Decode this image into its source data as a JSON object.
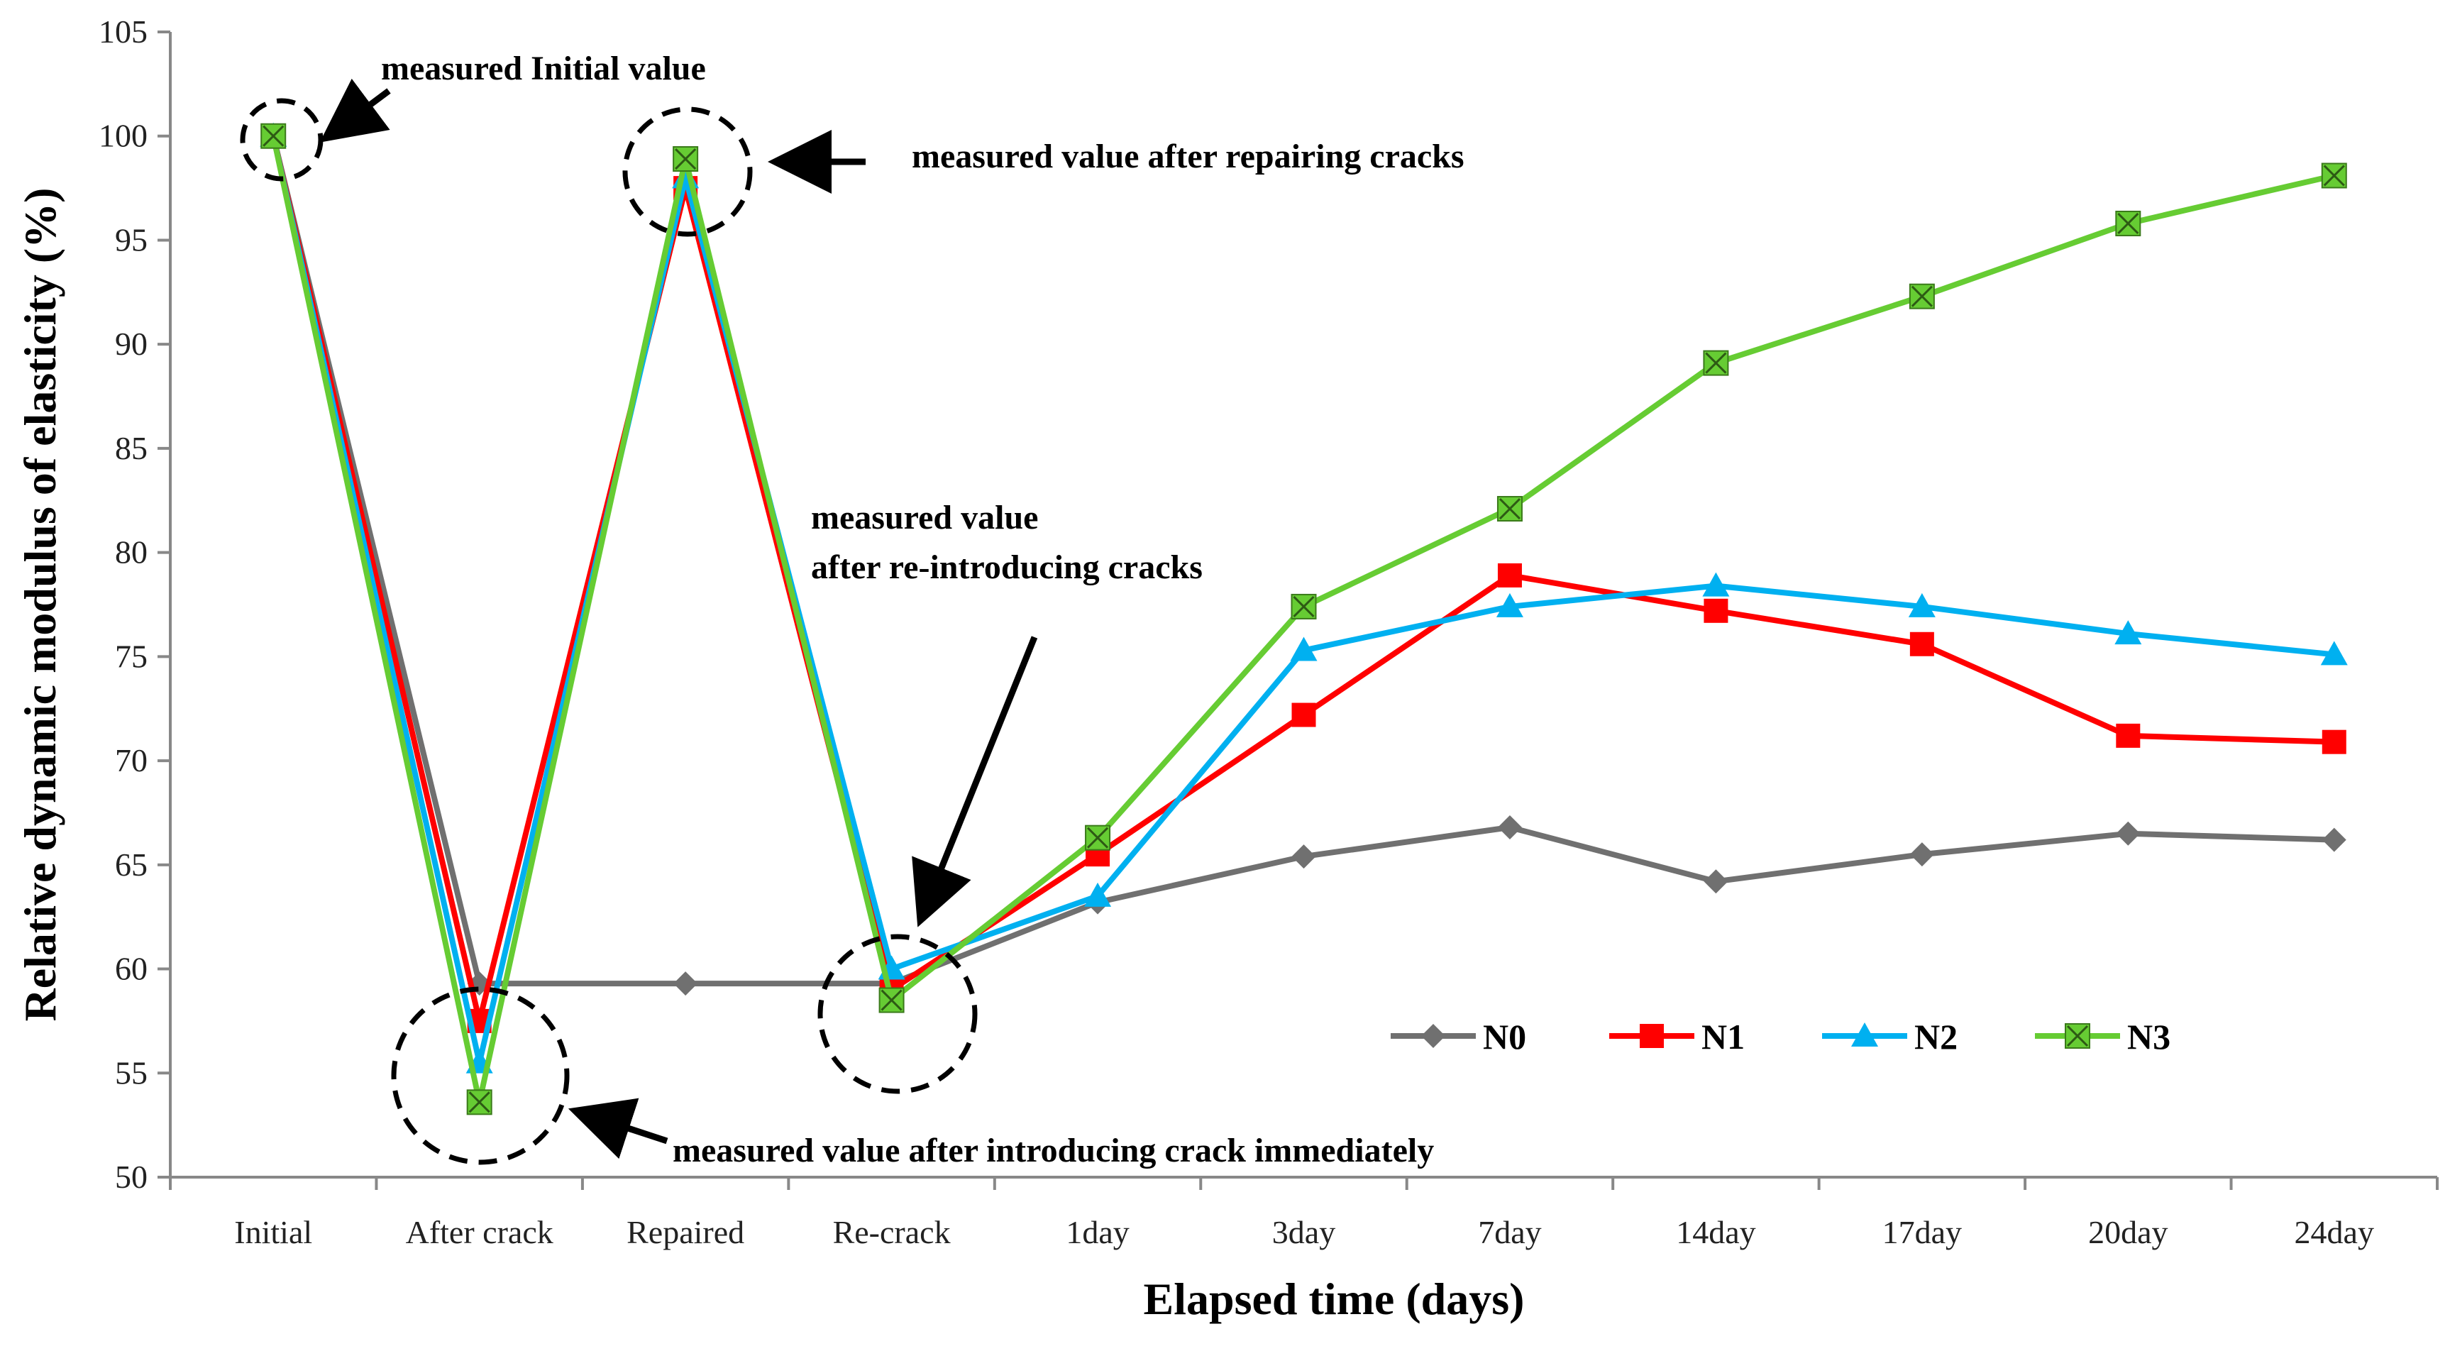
{
  "chart_data": {
    "type": "line",
    "title": "",
    "xlabel": "Elapsed time (days)",
    "ylabel": "Relative dynamic modulus of elasticity (%)",
    "ylim": [
      50,
      105
    ],
    "yticks": [
      50,
      55,
      60,
      65,
      70,
      75,
      80,
      85,
      90,
      95,
      100,
      105
    ],
    "grid": false,
    "legend_position": "lower-right",
    "categories": [
      "Initial",
      "After crack",
      "Repaired",
      "Re-crack",
      "1day",
      "3day",
      "7day",
      "14day",
      "17day",
      "20day",
      "24day"
    ],
    "series": [
      {
        "name": "N0",
        "color": "#707070",
        "marker": "diamond",
        "values": [
          100,
          59.3,
          59.3,
          59.3,
          63.2,
          65.4,
          66.8,
          64.2,
          65.5,
          66.5,
          66.2
        ]
      },
      {
        "name": "N1",
        "color": "#ff0000",
        "marker": "square",
        "values": [
          100,
          57.5,
          97.5,
          59.0,
          65.5,
          72.2,
          78.9,
          77.2,
          75.6,
          71.2,
          70.9
        ]
      },
      {
        "name": "N2",
        "color": "#00b0f0",
        "marker": "triangle",
        "values": [
          100,
          55.5,
          98.0,
          60.0,
          63.5,
          75.3,
          77.4,
          78.4,
          77.4,
          76.1,
          75.1
        ]
      },
      {
        "name": "N3",
        "color": "#66cc33",
        "marker": "x-square",
        "values": [
          100,
          53.6,
          98.9,
          58.5,
          66.3,
          77.4,
          82.1,
          89.1,
          92.3,
          95.8,
          98.1
        ]
      }
    ],
    "annotations": [
      {
        "text": "measured Initial value"
      },
      {
        "text": "measured value after repairing cracks"
      },
      {
        "text_lines": [
          "measured value",
          "after re-introducing cracks"
        ]
      },
      {
        "text": "measured value after introducing crack immediately"
      }
    ]
  }
}
